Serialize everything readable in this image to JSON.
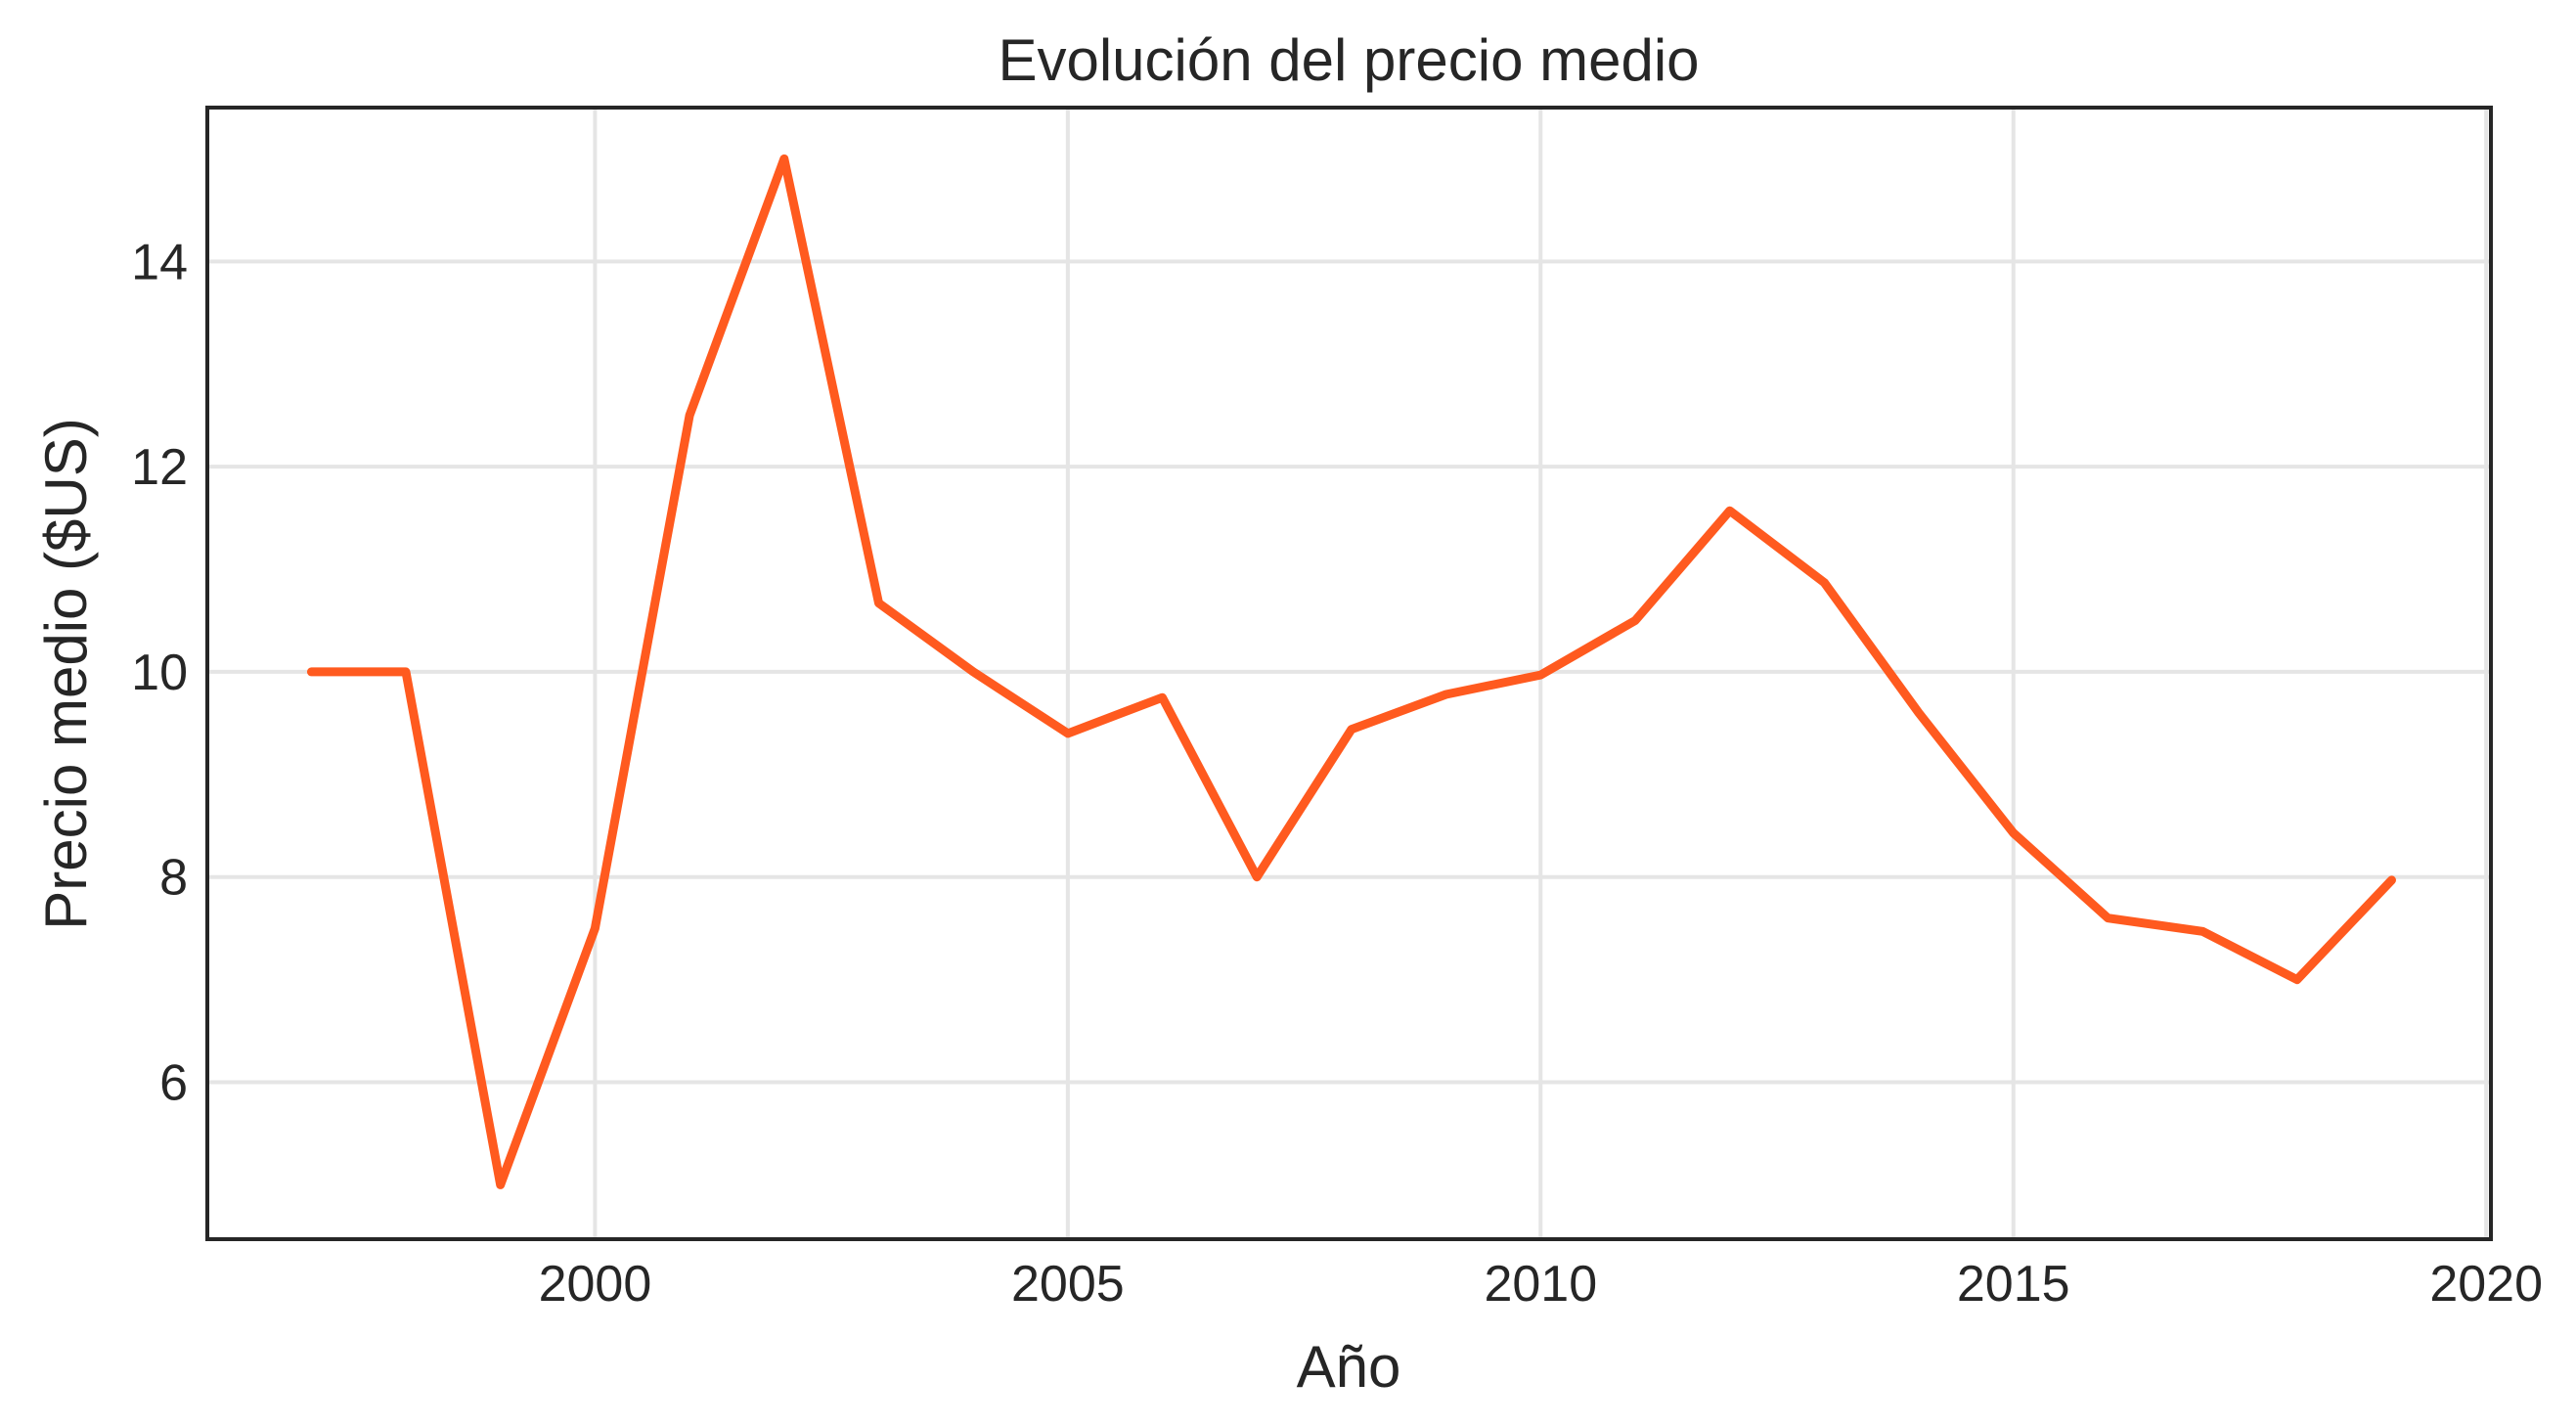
{
  "chart_data": {
    "type": "line",
    "title": "Evolución del precio medio",
    "xlabel": "Año",
    "ylabel": "Precio medio ($US)",
    "x": [
      1997,
      1998,
      1999,
      2000,
      2001,
      2002,
      2003,
      2004,
      2005,
      2006,
      2007,
      2008,
      2009,
      2010,
      2011,
      2012,
      2013,
      2014,
      2015,
      2016,
      2017,
      2018,
      2019
    ],
    "series": [
      {
        "values": [
          10.0,
          10.0,
          5.0,
          7.5,
          12.5,
          15.0,
          10.67,
          10.0,
          9.4,
          9.75,
          8.0,
          9.44,
          9.78,
          9.97,
          10.5,
          11.57,
          10.87,
          9.6,
          8.43,
          7.6,
          7.47,
          7.0,
          7.97
        ],
        "color": "#ff5a1f"
      }
    ],
    "xlim": [
      1995.9,
      2020.05
    ],
    "ylim": [
      4.47,
      15.5
    ],
    "xticks": [
      2000,
      2005,
      2010,
      2015,
      2020
    ],
    "xtick_labels": [
      "2000",
      "2005",
      "2010",
      "2015",
      "2020"
    ],
    "yticks": [
      6,
      8,
      10,
      12,
      14
    ],
    "ytick_labels": [
      "6",
      "8",
      "10",
      "12",
      "14"
    ],
    "grid": true,
    "grid_color": "#e5e5e5",
    "axis_color": "#262626"
  }
}
